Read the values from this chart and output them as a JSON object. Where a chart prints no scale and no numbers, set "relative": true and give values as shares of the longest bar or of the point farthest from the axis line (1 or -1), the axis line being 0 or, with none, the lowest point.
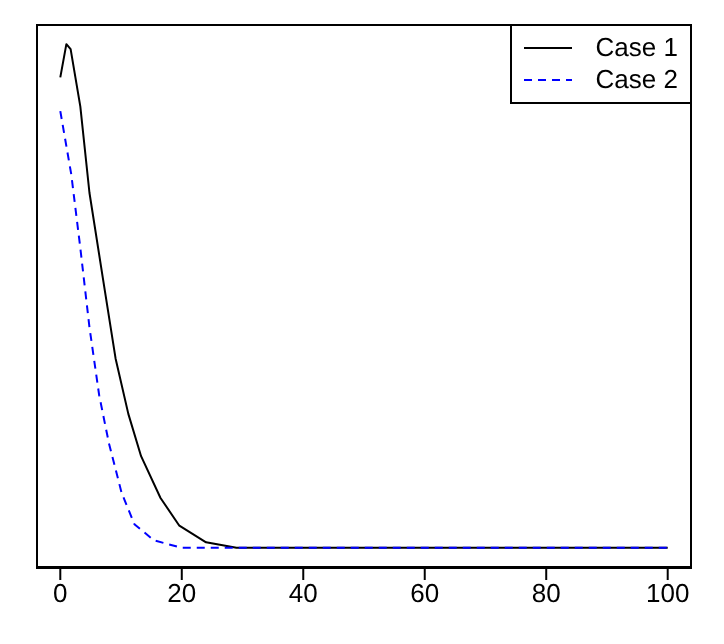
{
  "chart_data": {
    "type": "line",
    "relative": true,
    "xlim": [
      -4,
      104
    ],
    "xticks": [
      0,
      20,
      40,
      60,
      80,
      100
    ],
    "legend": "top right",
    "grid": false,
    "marker": "none",
    "series": [
      {
        "name": "Case 1",
        "color": "#000000",
        "line_style": "solid",
        "x": [
          0,
          1,
          1.7,
          3.3,
          4.8,
          7,
          9.1,
          11.2,
          13.3,
          16.5,
          19.6,
          24,
          29,
          40,
          60,
          80,
          100
        ],
        "values": [
          0.934,
          1,
          0.99,
          0.876,
          0.705,
          0.536,
          0.376,
          0.266,
          0.182,
          0.099,
          0.044,
          0.011,
          0,
          0,
          0,
          0,
          0
        ]
      },
      {
        "name": "Case 2",
        "color": "#0000ff",
        "line_style": "dashed",
        "x": [
          0,
          1.8,
          3.3,
          4.8,
          6.4,
          8,
          10.1,
          12.2,
          15.4,
          20,
          40,
          60,
          80,
          100
        ],
        "values": [
          0.867,
          0.742,
          0.595,
          0.438,
          0.303,
          0.208,
          0.109,
          0.047,
          0.015,
          0,
          0,
          0,
          0,
          0
        ]
      }
    ]
  }
}
